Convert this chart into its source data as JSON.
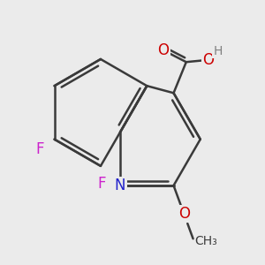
{
  "background_color": "#ebebeb",
  "bond_color": "#3a3a3a",
  "bond_width": 1.8,
  "atom_colors": {
    "N": "#2222cc",
    "O": "#cc0000",
    "F": "#cc22cc",
    "H": "#808080"
  },
  "font_size": 12,
  "font_size_small": 10
}
